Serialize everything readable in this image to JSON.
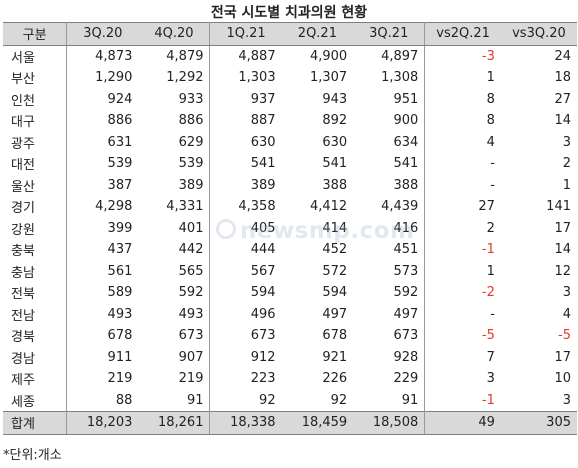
{
  "title": "전국 시도별 치과의원 현황",
  "headers": [
    "구분",
    "3Q.20",
    "4Q.20",
    "1Q.21",
    "2Q.21",
    "3Q.21",
    "vs2Q.21",
    "vs3Q.20"
  ],
  "rows": [
    {
      "name": "서울",
      "values": [
        "4,873",
        "4,879",
        "4,887",
        "4,900",
        "4,897"
      ],
      "vs2q21": "-3",
      "vs3q20": "24"
    },
    {
      "name": "부산",
      "values": [
        "1,290",
        "1,292",
        "1,303",
        "1,307",
        "1,308"
      ],
      "vs2q21": "1",
      "vs3q20": "18"
    },
    {
      "name": "인천",
      "values": [
        "924",
        "933",
        "937",
        "943",
        "951"
      ],
      "vs2q21": "8",
      "vs3q20": "27"
    },
    {
      "name": "대구",
      "values": [
        "886",
        "886",
        "887",
        "892",
        "900"
      ],
      "vs2q21": "8",
      "vs3q20": "14"
    },
    {
      "name": "광주",
      "values": [
        "631",
        "629",
        "630",
        "630",
        "634"
      ],
      "vs2q21": "4",
      "vs3q20": "3"
    },
    {
      "name": "대전",
      "values": [
        "539",
        "539",
        "541",
        "541",
        "541"
      ],
      "vs2q21": "-",
      "vs3q20": "2"
    },
    {
      "name": "울산",
      "values": [
        "387",
        "389",
        "389",
        "388",
        "388"
      ],
      "vs2q21": "-",
      "vs3q20": "1"
    },
    {
      "name": "경기",
      "values": [
        "4,298",
        "4,331",
        "4,358",
        "4,412",
        "4,439"
      ],
      "vs2q21": "27",
      "vs3q20": "141"
    },
    {
      "name": "강원",
      "values": [
        "399",
        "401",
        "405",
        "414",
        "416"
      ],
      "vs2q21": "2",
      "vs3q20": "17"
    },
    {
      "name": "충북",
      "values": [
        "437",
        "442",
        "444",
        "452",
        "451"
      ],
      "vs2q21": "-1",
      "vs3q20": "14"
    },
    {
      "name": "충남",
      "values": [
        "561",
        "565",
        "567",
        "572",
        "573"
      ],
      "vs2q21": "1",
      "vs3q20": "12"
    },
    {
      "name": "전북",
      "values": [
        "589",
        "592",
        "594",
        "594",
        "592"
      ],
      "vs2q21": "-2",
      "vs3q20": "3"
    },
    {
      "name": "전남",
      "values": [
        "493",
        "493",
        "496",
        "497",
        "497"
      ],
      "vs2q21": "-",
      "vs3q20": "4"
    },
    {
      "name": "경북",
      "values": [
        "678",
        "673",
        "673",
        "678",
        "673"
      ],
      "vs2q21": "-5",
      "vs3q20": "-5"
    },
    {
      "name": "경남",
      "values": [
        "911",
        "907",
        "912",
        "921",
        "928"
      ],
      "vs2q21": "7",
      "vs3q20": "17"
    },
    {
      "name": "제주",
      "values": [
        "219",
        "219",
        "223",
        "226",
        "229"
      ],
      "vs2q21": "3",
      "vs3q20": "10"
    },
    {
      "name": "세종",
      "values": [
        "88",
        "91",
        "92",
        "92",
        "91"
      ],
      "vs2q21": "-1",
      "vs3q20": "3"
    }
  ],
  "total": {
    "name": "합계",
    "values": [
      "18,203",
      "18,261",
      "18,338",
      "18,459",
      "18,508"
    ],
    "vs2q21": "49",
    "vs3q20": "305"
  },
  "note": "*단위:개소",
  "watermark": "newsmp.com",
  "colors": {
    "header_bg": "#d9d9d9",
    "negative": "#e8382c"
  }
}
